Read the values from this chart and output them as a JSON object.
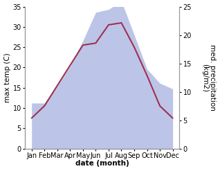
{
  "months": [
    "Jan",
    "Feb",
    "Mar",
    "Apr",
    "May",
    "Jun",
    "Jul",
    "Aug",
    "Sep",
    "Oct",
    "Nov",
    "Dec"
  ],
  "temperature": [
    7.5,
    10.5,
    15.5,
    20.5,
    25.5,
    26.0,
    30.5,
    31.0,
    25.0,
    18.0,
    10.5,
    7.5
  ],
  "precipitation": [
    8.0,
    8.0,
    11.0,
    14.5,
    19.0,
    24.0,
    24.5,
    26.0,
    20.0,
    14.0,
    11.5,
    10.5
  ],
  "temp_color": "#a03050",
  "precip_color": "#bcc5e8",
  "temp_ylim": [
    0,
    35
  ],
  "precip_ylim": [
    0,
    25
  ],
  "temp_yticks": [
    0,
    5,
    10,
    15,
    20,
    25,
    30,
    35
  ],
  "precip_yticks": [
    0,
    5,
    10,
    15,
    20,
    25
  ],
  "xlabel": "date (month)",
  "ylabel_left": "max temp (C)",
  "ylabel_right": "med. precipitation\n(kg/m2)",
  "background_color": "#ffffff",
  "label_fontsize": 7.5,
  "tick_fontsize": 7
}
